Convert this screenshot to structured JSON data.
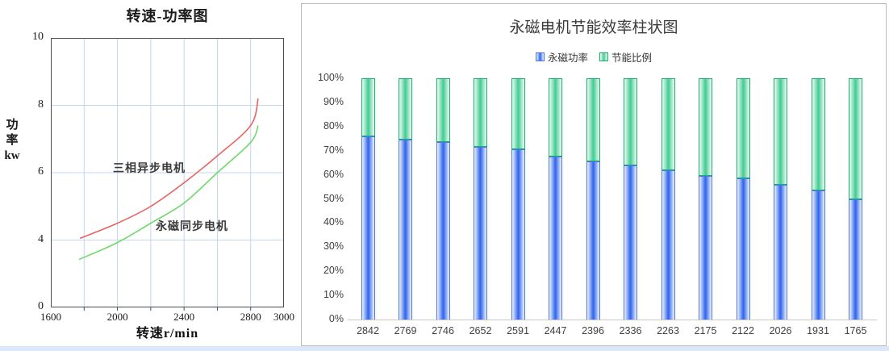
{
  "page": {
    "background": "#ffffff",
    "bottom_strip_color": "#dbe8f9"
  },
  "left_chart": {
    "title": "转速-功率图",
    "y_axis_label": "功\n率\nkw",
    "x_axis_label": "转速r/min",
    "series_labels": {
      "async_motor": "三相异步电机",
      "pm_motor": "永磁同步电机"
    },
    "grid_color": "#c3d5f2",
    "border_color": "#4d4d4d"
  },
  "right_chart": {
    "title": "永磁电机节能效率柱状图",
    "legend": [
      {
        "label": "永磁功率",
        "color": "#2d63ee"
      },
      {
        "label": "节能比例",
        "color": "#3ecd92"
      }
    ]
  },
  "chart_data": [
    {
      "type": "line",
      "title": "转速-功率图",
      "xlabel": "转速r/min",
      "ylabel": "功率kw",
      "xlim": [
        1600,
        3000
      ],
      "x_ticks": [
        1600,
        2000,
        2400,
        2800,
        3000
      ],
      "y_ticks": [
        10,
        8,
        6,
        4,
        0
      ],
      "y_ticks_equally_spaced": true,
      "grid": true,
      "legend_position": "inline-labels",
      "series": [
        {
          "name": "三相异步电机",
          "color": "#e8635e",
          "x": [
            1775,
            2000,
            2200,
            2400,
            2600,
            2800,
            2845
          ],
          "y": [
            4.05,
            4.5,
            5.0,
            5.7,
            6.5,
            7.4,
            8.2
          ]
        },
        {
          "name": "永磁同步电机",
          "color": "#6fd96a",
          "x": [
            1770,
            2000,
            2200,
            2400,
            2600,
            2800,
            2845
          ],
          "y": [
            2.85,
            3.85,
            4.5,
            5.1,
            6.0,
            6.9,
            7.4
          ]
        }
      ]
    },
    {
      "type": "bar",
      "subtype": "stacked",
      "title": "永磁电机节能效率柱状图",
      "categories": [
        "2842",
        "2769",
        "2746",
        "2652",
        "2591",
        "2447",
        "2396",
        "2336",
        "2263",
        "2175",
        "2122",
        "2026",
        "1931",
        "1765"
      ],
      "series": [
        {
          "name": "永磁功率",
          "color": "#2d63ee",
          "values": [
            76,
            74.5,
            73.5,
            71.5,
            70.5,
            67.5,
            65.5,
            64,
            62,
            59.5,
            58.5,
            56,
            53.5,
            50
          ]
        },
        {
          "name": "节能比例",
          "color": "#3ecd92",
          "values": [
            24,
            25.5,
            26.5,
            28.5,
            29.5,
            32.5,
            34.5,
            36,
            38,
            40.5,
            41.5,
            44,
            46.5,
            50
          ]
        }
      ],
      "ylim": [
        0,
        100
      ],
      "y_ticks": [
        "0%",
        "10%",
        "20%",
        "30%",
        "40%",
        "50%",
        "60%",
        "70%",
        "80%",
        "90%",
        "100%"
      ],
      "grid": false,
      "legend_position": "top"
    }
  ]
}
